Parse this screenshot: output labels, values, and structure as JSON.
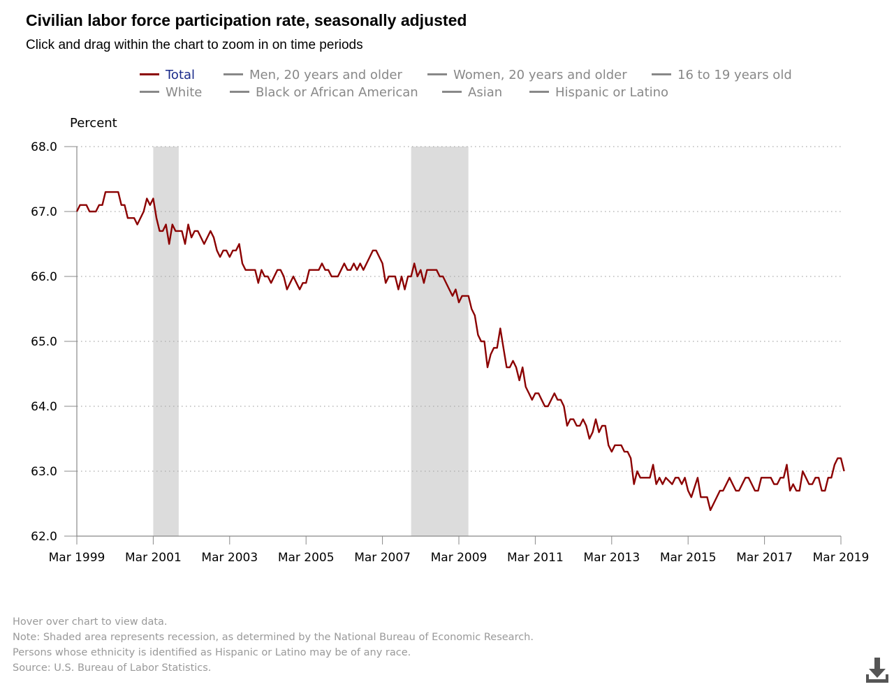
{
  "chart_data": {
    "type": "line",
    "title": "Civilian labor force participation rate, seasonally adjusted",
    "subtitle": "Click and drag within the chart to zoom in on time periods",
    "ylabel": "Percent",
    "ylim": [
      62.0,
      68.0
    ],
    "y_ticks": [
      "62.0",
      "63.0",
      "64.0",
      "65.0",
      "66.0",
      "67.0",
      "68.0"
    ],
    "x_ticks": [
      "Mar 1999",
      "Mar 2001",
      "Mar 2003",
      "Mar 2005",
      "Mar 2007",
      "Mar 2009",
      "Mar 2011",
      "Mar 2013",
      "Mar 2015",
      "Mar 2017",
      "Mar 2019"
    ],
    "x_range": [
      "1999-03",
      "2019-03"
    ],
    "grid": "horizontal dotted",
    "legend": {
      "placement": "top",
      "items": [
        {
          "name": "Total",
          "active": true
        },
        {
          "name": "Men, 20 years and older",
          "active": false
        },
        {
          "name": "Women, 20 years and older",
          "active": false
        },
        {
          "name": "16 to 19 years old",
          "active": false
        },
        {
          "name": "White",
          "active": false
        },
        {
          "name": "Black or African American",
          "active": false
        },
        {
          "name": "Asian",
          "active": false
        },
        {
          "name": "Hispanic or Latino",
          "active": false
        }
      ]
    },
    "recessions": [
      {
        "start": "2001-03",
        "end": "2001-11"
      },
      {
        "start": "2007-12",
        "end": "2009-06"
      }
    ],
    "series": [
      {
        "name": "Total",
        "color": "#8b0000",
        "points": [
          [
            "1999-03",
            67.0
          ],
          [
            "1999-04",
            67.1
          ],
          [
            "1999-06",
            67.1
          ],
          [
            "1999-07",
            67.0
          ],
          [
            "1999-09",
            67.0
          ],
          [
            "1999-10",
            67.1
          ],
          [
            "1999-11",
            67.1
          ],
          [
            "1999-12",
            67.3
          ],
          [
            "2000-02",
            67.3
          ],
          [
            "2000-03",
            67.3
          ],
          [
            "2000-04",
            67.3
          ],
          [
            "2000-05",
            67.1
          ],
          [
            "2000-06",
            67.1
          ],
          [
            "2000-07",
            66.9
          ],
          [
            "2000-09",
            66.9
          ],
          [
            "2000-10",
            66.8
          ],
          [
            "2000-12",
            67.0
          ],
          [
            "2001-01",
            67.2
          ],
          [
            "2001-02",
            67.1
          ],
          [
            "2001-03",
            67.2
          ],
          [
            "2001-04",
            66.9
          ],
          [
            "2001-05",
            66.7
          ],
          [
            "2001-06",
            66.7
          ],
          [
            "2001-07",
            66.8
          ],
          [
            "2001-08",
            66.5
          ],
          [
            "2001-09",
            66.8
          ],
          [
            "2001-10",
            66.7
          ],
          [
            "2001-12",
            66.7
          ],
          [
            "2002-01",
            66.5
          ],
          [
            "2002-02",
            66.8
          ],
          [
            "2002-03",
            66.6
          ],
          [
            "2002-04",
            66.7
          ],
          [
            "2002-05",
            66.7
          ],
          [
            "2002-07",
            66.5
          ],
          [
            "2002-09",
            66.7
          ],
          [
            "2002-10",
            66.6
          ],
          [
            "2002-11",
            66.4
          ],
          [
            "2002-12",
            66.3
          ],
          [
            "2003-01",
            66.4
          ],
          [
            "2003-02",
            66.4
          ],
          [
            "2003-03",
            66.3
          ],
          [
            "2003-04",
            66.4
          ],
          [
            "2003-05",
            66.4
          ],
          [
            "2003-06",
            66.5
          ],
          [
            "2003-07",
            66.2
          ],
          [
            "2003-08",
            66.1
          ],
          [
            "2003-11",
            66.1
          ],
          [
            "2003-12",
            65.9
          ],
          [
            "2004-01",
            66.1
          ],
          [
            "2004-02",
            66.0
          ],
          [
            "2004-03",
            66.0
          ],
          [
            "2004-04",
            65.9
          ],
          [
            "2004-06",
            66.1
          ],
          [
            "2004-07",
            66.1
          ],
          [
            "2004-08",
            66.0
          ],
          [
            "2004-09",
            65.8
          ],
          [
            "2004-10",
            65.9
          ],
          [
            "2004-11",
            66.0
          ],
          [
            "2004-12",
            65.9
          ],
          [
            "2005-01",
            65.8
          ],
          [
            "2005-02",
            65.9
          ],
          [
            "2005-03",
            65.9
          ],
          [
            "2005-04",
            66.1
          ],
          [
            "2005-06",
            66.1
          ],
          [
            "2005-07",
            66.1
          ],
          [
            "2005-08",
            66.2
          ],
          [
            "2005-09",
            66.1
          ],
          [
            "2005-10",
            66.1
          ],
          [
            "2005-11",
            66.0
          ],
          [
            "2006-01",
            66.0
          ],
          [
            "2006-03",
            66.2
          ],
          [
            "2006-04",
            66.1
          ],
          [
            "2006-05",
            66.1
          ],
          [
            "2006-06",
            66.2
          ],
          [
            "2006-07",
            66.1
          ],
          [
            "2006-08",
            66.2
          ],
          [
            "2006-09",
            66.1
          ],
          [
            "2006-11",
            66.3
          ],
          [
            "2006-12",
            66.4
          ],
          [
            "2007-01",
            66.4
          ],
          [
            "2007-03",
            66.2
          ],
          [
            "2007-04",
            65.9
          ],
          [
            "2007-05",
            66.0
          ],
          [
            "2007-07",
            66.0
          ],
          [
            "2007-08",
            65.8
          ],
          [
            "2007-09",
            66.0
          ],
          [
            "2007-10",
            65.8
          ],
          [
            "2007-11",
            66.0
          ],
          [
            "2007-12",
            66.0
          ],
          [
            "2008-01",
            66.2
          ],
          [
            "2008-02",
            66.0
          ],
          [
            "2008-03",
            66.1
          ],
          [
            "2008-04",
            65.9
          ],
          [
            "2008-05",
            66.1
          ],
          [
            "2008-08",
            66.1
          ],
          [
            "2008-09",
            66.0
          ],
          [
            "2008-10",
            66.0
          ],
          [
            "2008-12",
            65.8
          ],
          [
            "2009-01",
            65.7
          ],
          [
            "2009-02",
            65.8
          ],
          [
            "2009-03",
            65.6
          ],
          [
            "2009-04",
            65.7
          ],
          [
            "2009-06",
            65.7
          ],
          [
            "2009-07",
            65.5
          ],
          [
            "2009-08",
            65.4
          ],
          [
            "2009-09",
            65.1
          ],
          [
            "2009-10",
            65.0
          ],
          [
            "2009-11",
            65.0
          ],
          [
            "2009-12",
            64.6
          ],
          [
            "2010-01",
            64.8
          ],
          [
            "2010-02",
            64.9
          ],
          [
            "2010-03",
            64.9
          ],
          [
            "2010-04",
            65.2
          ],
          [
            "2010-05",
            64.9
          ],
          [
            "2010-06",
            64.6
          ],
          [
            "2010-07",
            64.6
          ],
          [
            "2010-08",
            64.7
          ],
          [
            "2010-09",
            64.6
          ],
          [
            "2010-10",
            64.4
          ],
          [
            "2010-11",
            64.6
          ],
          [
            "2010-12",
            64.3
          ],
          [
            "2011-01",
            64.2
          ],
          [
            "2011-02",
            64.1
          ],
          [
            "2011-03",
            64.2
          ],
          [
            "2011-04",
            64.2
          ],
          [
            "2011-05",
            64.1
          ],
          [
            "2011-06",
            64.0
          ],
          [
            "2011-07",
            64.0
          ],
          [
            "2011-09",
            64.2
          ],
          [
            "2011-10",
            64.1
          ],
          [
            "2011-11",
            64.1
          ],
          [
            "2011-12",
            64.0
          ],
          [
            "2012-01",
            63.7
          ],
          [
            "2012-02",
            63.8
          ],
          [
            "2012-03",
            63.8
          ],
          [
            "2012-04",
            63.7
          ],
          [
            "2012-05",
            63.7
          ],
          [
            "2012-06",
            63.8
          ],
          [
            "2012-07",
            63.7
          ],
          [
            "2012-08",
            63.5
          ],
          [
            "2012-09",
            63.6
          ],
          [
            "2012-10",
            63.8
          ],
          [
            "2012-11",
            63.6
          ],
          [
            "2012-12",
            63.7
          ],
          [
            "2013-01",
            63.7
          ],
          [
            "2013-02",
            63.4
          ],
          [
            "2013-03",
            63.3
          ],
          [
            "2013-04",
            63.4
          ],
          [
            "2013-06",
            63.4
          ],
          [
            "2013-07",
            63.3
          ],
          [
            "2013-08",
            63.3
          ],
          [
            "2013-09",
            63.2
          ],
          [
            "2013-10",
            62.8
          ],
          [
            "2013-11",
            63.0
          ],
          [
            "2013-12",
            62.9
          ],
          [
            "2014-03",
            62.9
          ],
          [
            "2014-04",
            63.1
          ],
          [
            "2014-05",
            62.8
          ],
          [
            "2014-06",
            62.9
          ],
          [
            "2014-07",
            62.8
          ],
          [
            "2014-08",
            62.9
          ],
          [
            "2014-10",
            62.8
          ],
          [
            "2014-11",
            62.9
          ],
          [
            "2014-12",
            62.9
          ],
          [
            "2015-01",
            62.8
          ],
          [
            "2015-02",
            62.9
          ],
          [
            "2015-03",
            62.7
          ],
          [
            "2015-04",
            62.6
          ],
          [
            "2015-06",
            62.9
          ],
          [
            "2015-07",
            62.6
          ],
          [
            "2015-09",
            62.6
          ],
          [
            "2015-10",
            62.4
          ],
          [
            "2015-11",
            62.5
          ],
          [
            "2016-01",
            62.7
          ],
          [
            "2016-02",
            62.7
          ],
          [
            "2016-03",
            62.8
          ],
          [
            "2016-04",
            62.9
          ],
          [
            "2016-05",
            62.8
          ],
          [
            "2016-06",
            62.7
          ],
          [
            "2016-07",
            62.7
          ],
          [
            "2016-09",
            62.9
          ],
          [
            "2016-10",
            62.9
          ],
          [
            "2016-11",
            62.8
          ],
          [
            "2016-12",
            62.7
          ],
          [
            "2017-01",
            62.7
          ],
          [
            "2017-02",
            62.9
          ],
          [
            "2017-05",
            62.9
          ],
          [
            "2017-06",
            62.8
          ],
          [
            "2017-07",
            62.8
          ],
          [
            "2017-08",
            62.9
          ],
          [
            "2017-09",
            62.9
          ],
          [
            "2017-10",
            63.1
          ],
          [
            "2017-11",
            62.7
          ],
          [
            "2017-12",
            62.8
          ],
          [
            "2018-01",
            62.7
          ],
          [
            "2018-02",
            62.7
          ],
          [
            "2018-03",
            63.0
          ],
          [
            "2018-04",
            62.9
          ],
          [
            "2018-05",
            62.8
          ],
          [
            "2018-06",
            62.8
          ],
          [
            "2018-07",
            62.9
          ],
          [
            "2018-08",
            62.9
          ],
          [
            "2018-09",
            62.7
          ],
          [
            "2018-10",
            62.7
          ],
          [
            "2018-11",
            62.9
          ],
          [
            "2018-12",
            62.9
          ],
          [
            "2019-01",
            63.1
          ],
          [
            "2019-02",
            63.2
          ],
          [
            "2019-03",
            63.2
          ],
          [
            "2019-04",
            63.0
          ]
        ]
      }
    ]
  },
  "footer": {
    "notes": [
      "Hover over chart to view data.",
      "Note: Shaded area represents recession, as determined by the National Bureau of Economic Research.",
      "Persons whose ethnicity is identified as Hispanic or Latino may be of any race.",
      "Source: U.S. Bureau of Labor Statistics."
    ],
    "download_icon": "download-icon"
  }
}
